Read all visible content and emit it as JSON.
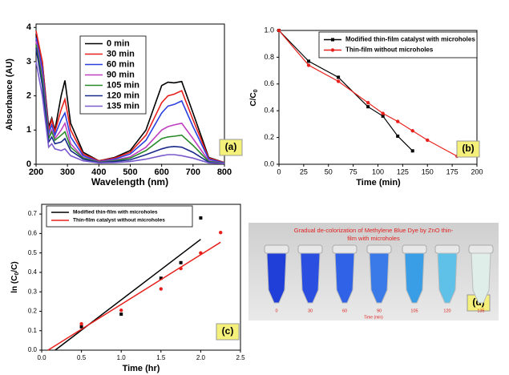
{
  "chart_data": [
    {
      "type": "line",
      "xlabel": "Wavelength (nm)",
      "ylabel": "Absorbance (AU)",
      "annotation": "(a)",
      "x": [
        200,
        220,
        240,
        250,
        260,
        280,
        292,
        310,
        350,
        400,
        450,
        500,
        550,
        600,
        620,
        640,
        664,
        700,
        750,
        800
      ],
      "series": [
        {
          "name": "0 min",
          "color": "#000000",
          "values": [
            3.8,
            3.0,
            1.1,
            1.35,
            1.0,
            2.0,
            2.45,
            1.2,
            0.35,
            0.1,
            0.2,
            0.4,
            1.0,
            2.3,
            2.4,
            2.38,
            2.42,
            1.5,
            0.2,
            0.05
          ]
        },
        {
          "name": "30 min",
          "color": "#e8201c",
          "values": [
            3.9,
            3.0,
            1.0,
            1.3,
            0.95,
            1.6,
            1.9,
            1.0,
            0.3,
            0.1,
            0.18,
            0.35,
            0.85,
            1.8,
            2.0,
            2.05,
            2.15,
            1.3,
            0.18,
            0.05
          ]
        },
        {
          "name": "60 min",
          "color": "#2a3fe0",
          "values": [
            3.7,
            2.8,
            0.9,
            1.15,
            0.85,
            1.3,
            1.5,
            0.8,
            0.25,
            0.08,
            0.15,
            0.3,
            0.7,
            1.5,
            1.7,
            1.75,
            1.85,
            1.1,
            0.15,
            0.04
          ]
        },
        {
          "name": "90 min",
          "color": "#c040c0",
          "values": [
            3.6,
            2.6,
            0.8,
            1.0,
            0.75,
            1.0,
            1.2,
            0.6,
            0.2,
            0.07,
            0.12,
            0.22,
            0.5,
            1.0,
            1.1,
            1.15,
            1.2,
            0.75,
            0.1,
            0.03
          ]
        },
        {
          "name": "105 min",
          "color": "#2a8a2a",
          "values": [
            3.5,
            2.5,
            0.75,
            0.95,
            0.7,
            0.85,
            0.95,
            0.5,
            0.18,
            0.06,
            0.1,
            0.18,
            0.4,
            0.75,
            0.8,
            0.82,
            0.85,
            0.55,
            0.08,
            0.03
          ]
        },
        {
          "name": "120 min",
          "color": "#1a2a8a",
          "values": [
            3.4,
            2.3,
            0.65,
            0.8,
            0.6,
            0.65,
            0.75,
            0.4,
            0.15,
            0.05,
            0.08,
            0.13,
            0.28,
            0.45,
            0.5,
            0.52,
            0.5,
            0.35,
            0.06,
            0.02
          ]
        },
        {
          "name": "135 min",
          "color": "#7a5acc",
          "values": [
            3.0,
            2.0,
            0.5,
            0.6,
            0.45,
            0.4,
            0.45,
            0.25,
            0.1,
            0.04,
            0.05,
            0.08,
            0.15,
            0.25,
            0.28,
            0.28,
            0.25,
            0.18,
            0.04,
            0.02
          ]
        }
      ],
      "xlim": [
        200,
        800
      ],
      "xticks": [
        200,
        300,
        400,
        500,
        600,
        700,
        800
      ],
      "ylim": [
        0,
        4.1
      ],
      "yticks": [
        0,
        1,
        2,
        3,
        4
      ],
      "markers": false
    },
    {
      "type": "line",
      "xlabel": "Time (min)",
      "ylabel": [
        {
          "text": "C/C"
        },
        {
          "text": "0",
          "sub": true
        }
      ],
      "annotation": "(b)",
      "series": [
        {
          "name": "Modified thin-film catalyst with microholes",
          "color": "#000000",
          "x": [
            0,
            30,
            60,
            90,
            105,
            120,
            135
          ],
          "values": [
            1.0,
            0.77,
            0.65,
            0.43,
            0.36,
            0.21,
            0.1
          ]
        },
        {
          "name": "Thin-film without microholes",
          "color": "#e8201c",
          "x": [
            0,
            30,
            60,
            90,
            105,
            120,
            135,
            150,
            180
          ],
          "values": [
            1.0,
            0.74,
            0.62,
            0.46,
            0.38,
            0.32,
            0.25,
            0.18,
            0.06
          ]
        }
      ],
      "xlim": [
        0,
        200
      ],
      "xticks": [
        0,
        25,
        50,
        75,
        100,
        125,
        150,
        175,
        200
      ],
      "ylim": [
        0,
        1.0
      ],
      "yticks": [
        {
          "value": 0,
          "label": "0.0"
        },
        {
          "value": 0.2,
          "label": "0.2"
        },
        {
          "value": 0.4,
          "label": "0.4"
        },
        {
          "value": 0.6,
          "label": "0.6"
        },
        {
          "value": 0.8,
          "label": "0.8"
        },
        {
          "value": 1,
          "label": "1.0"
        }
      ],
      "markers": true
    },
    {
      "type": "scatter",
      "xlabel": "Time (hr)",
      "ylabel": [
        {
          "text": "ln (C"
        },
        {
          "text": "0",
          "sub": true
        },
        {
          "text": "/C)"
        }
      ],
      "annotation": "(c)",
      "series": [
        {
          "name": "Modified thin-film with microholes",
          "color": "#000000",
          "x": [
            0.5,
            1,
            1.5,
            1.75,
            2
          ],
          "values": [
            0.12,
            0.185,
            0.37,
            0.45,
            0.68
          ],
          "fit_x": [
            0.17,
            2
          ],
          "fit_y": [
            0,
            0.57
          ]
        },
        {
          "name": "Thin-film catalyst without microholes",
          "color": "#e8201c",
          "x": [
            0.5,
            1,
            1.5,
            1.75,
            2,
            2.25
          ],
          "values": [
            0.135,
            0.205,
            0.315,
            0.42,
            0.5,
            0.605
          ],
          "fit_x": [
            0.08,
            2.25
          ],
          "fit_y": [
            0,
            0.555
          ]
        }
      ],
      "xlim": [
        0,
        2.5
      ],
      "xticks": [
        {
          "value": 0,
          "label": "0.0"
        },
        {
          "value": 0.5,
          "label": "0.5"
        },
        {
          "value": 1,
          "label": "1.0"
        },
        {
          "value": 1.5,
          "label": "1.5"
        },
        {
          "value": 2,
          "label": "2.0"
        },
        {
          "value": 2.5,
          "label": "2.5"
        }
      ],
      "ylim": [
        0,
        0.75
      ],
      "yticks": [
        {
          "value": 0,
          "label": "0.0"
        },
        0.1,
        0.2,
        0.3,
        0.4,
        0.5,
        0.6,
        0.7
      ]
    }
  ],
  "photo": {
    "caption": [
      "Gradual de-colorization of Methylene Blue Dye by ZnO thin-",
      "film with microholes"
    ],
    "labels": [
      "0",
      "30",
      "60",
      "90",
      "105",
      "120",
      "135"
    ],
    "axis_label": "Time (min)",
    "annotation": "(d)"
  }
}
